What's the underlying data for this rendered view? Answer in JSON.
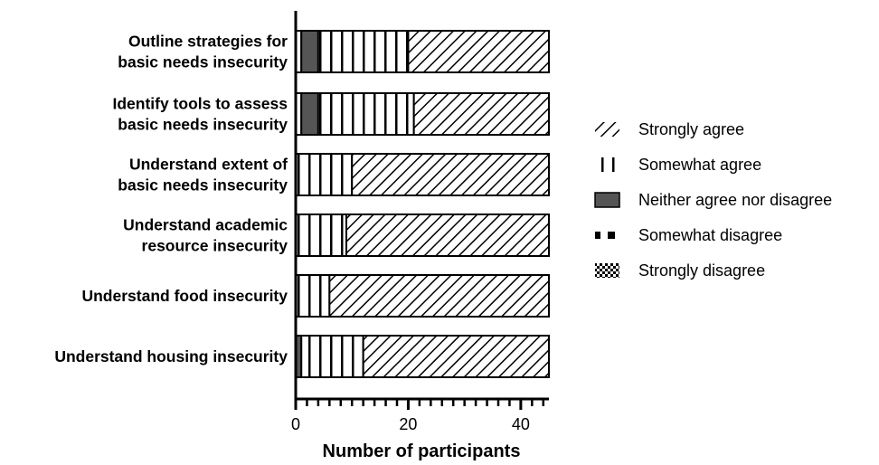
{
  "chart_data": {
    "type": "bar",
    "orientation": "horizontal",
    "stacked": true,
    "xlabel": "Number of participants",
    "ylabel": "",
    "xlim": [
      0,
      45
    ],
    "xticks": [
      0,
      20,
      40
    ],
    "legend_position": "right",
    "categories": [
      [
        "Outline strategies for",
        "basic needs insecurity"
      ],
      [
        "Identify tools to assess",
        "basic needs insecurity"
      ],
      [
        "Understand extent of",
        "basic needs insecurity"
      ],
      [
        "Understand academic",
        "resource insecurity"
      ],
      [
        "Understand food insecurity"
      ],
      [
        "Understand housing insecurity"
      ]
    ],
    "series": [
      {
        "name": "Strongly disagree",
        "pattern": "checker",
        "values": [
          0,
          0,
          0,
          0,
          0,
          0
        ]
      },
      {
        "name": "Somewhat disagree",
        "pattern": "split",
        "values": [
          1,
          1,
          0,
          0,
          0,
          0
        ]
      },
      {
        "name": "Neither agree nor disagree",
        "pattern": "gray",
        "values": [
          3,
          3,
          0,
          0,
          0,
          1
        ]
      },
      {
        "name": "Somewhat agree",
        "pattern": "vertical",
        "values": [
          16,
          17,
          10,
          9,
          6,
          11
        ]
      },
      {
        "name": "Strongly agree",
        "pattern": "diagonal",
        "values": [
          25,
          24,
          35,
          36,
          39,
          33
        ]
      }
    ],
    "legend_order": [
      "Strongly agree",
      "Somewhat agree",
      "Neither agree nor disagree",
      "Somewhat disagree",
      "Strongly disagree"
    ]
  }
}
